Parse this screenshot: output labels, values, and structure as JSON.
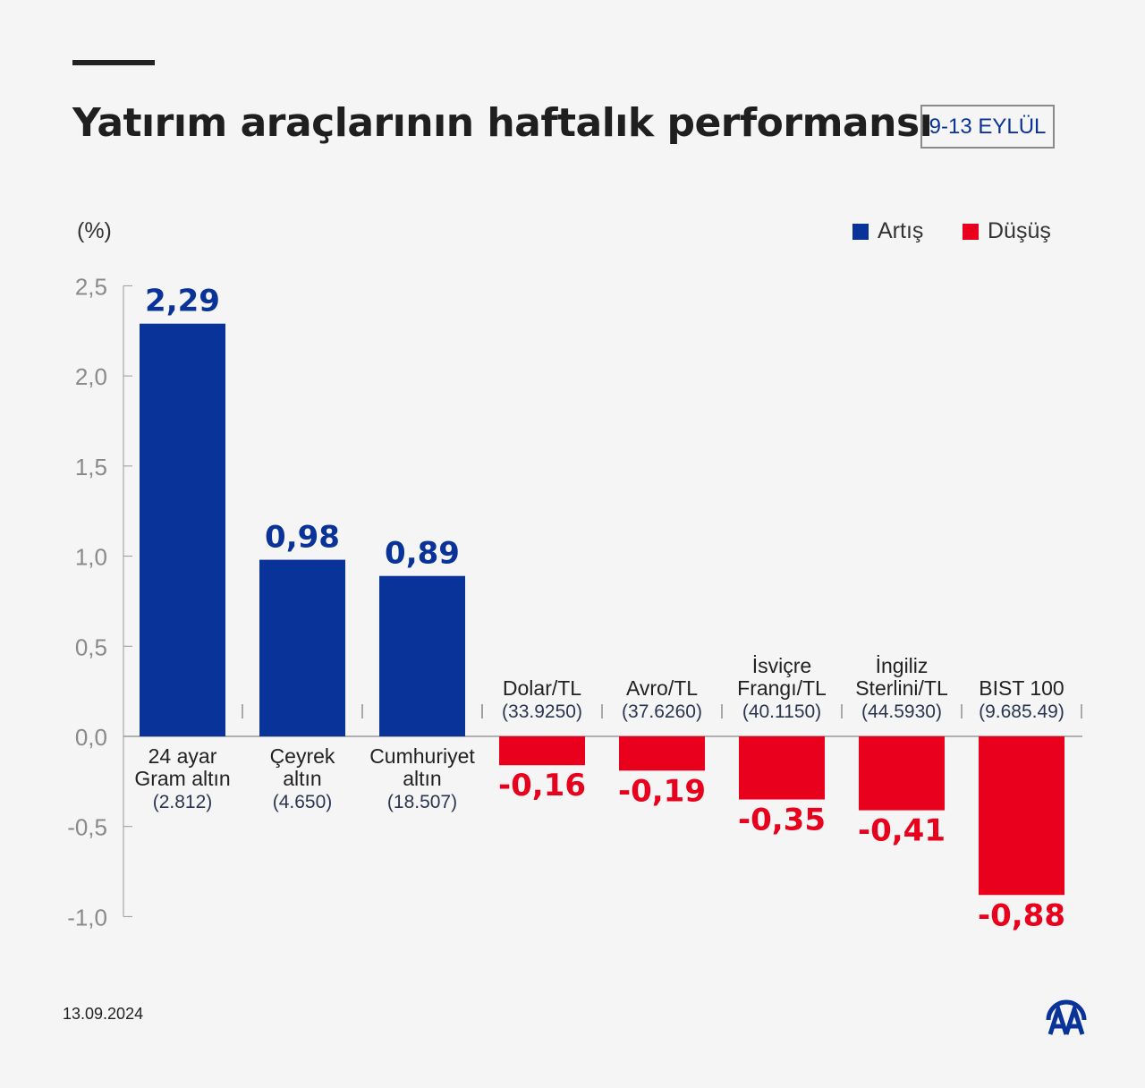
{
  "chart_data": {
    "type": "bar",
    "title": "Yatırım araçlarının haftalık performansı",
    "badge": "9-13 EYLÜL",
    "ylabel": "(%)",
    "ylim": [
      -1.0,
      2.5
    ],
    "yticks": [
      "2,5",
      "2,0",
      "1,5",
      "1,0",
      "0,5",
      "0,0",
      "-0,5",
      "-1,0"
    ],
    "ytick_values": [
      2.5,
      2.0,
      1.5,
      1.0,
      0.5,
      0.0,
      -0.5,
      -1.0
    ],
    "legend": [
      {
        "label": "Artış",
        "color": "#0a3399"
      },
      {
        "label": "Düşüş",
        "color": "#e8001c"
      }
    ],
    "legend_position": "top-right",
    "grid": false,
    "categories": [
      {
        "lines": [
          "24 ayar",
          "Gram altın"
        ],
        "price": "(2.812)",
        "value": 2.29,
        "label": "2,29"
      },
      {
        "lines": [
          "Çeyrek",
          "altın"
        ],
        "price": "(4.650)",
        "value": 0.98,
        "label": "0,98"
      },
      {
        "lines": [
          "Cumhuriyet",
          "altın"
        ],
        "price": "(18.507)",
        "value": 0.89,
        "label": "0,89"
      },
      {
        "lines": [
          "Dolar/TL"
        ],
        "price": "(33.9250)",
        "value": -0.16,
        "label": "-0,16"
      },
      {
        "lines": [
          "Avro/TL"
        ],
        "price": "(37.6260)",
        "value": -0.19,
        "label": "-0,19"
      },
      {
        "lines": [
          "İsviçre",
          "Frangı/TL"
        ],
        "price": "(40.1150)",
        "value": -0.35,
        "label": "-0,35"
      },
      {
        "lines": [
          "İngiliz",
          "Sterlini/TL"
        ],
        "price": "(44.5930)",
        "value": -0.41,
        "label": "-0,41"
      },
      {
        "lines": [
          "BIST 100"
        ],
        "price": "(9.685.49)",
        "value": -0.88,
        "label": "-0,88"
      }
    ]
  },
  "footer": {
    "date": "13.09.2024",
    "logo": "AA"
  }
}
